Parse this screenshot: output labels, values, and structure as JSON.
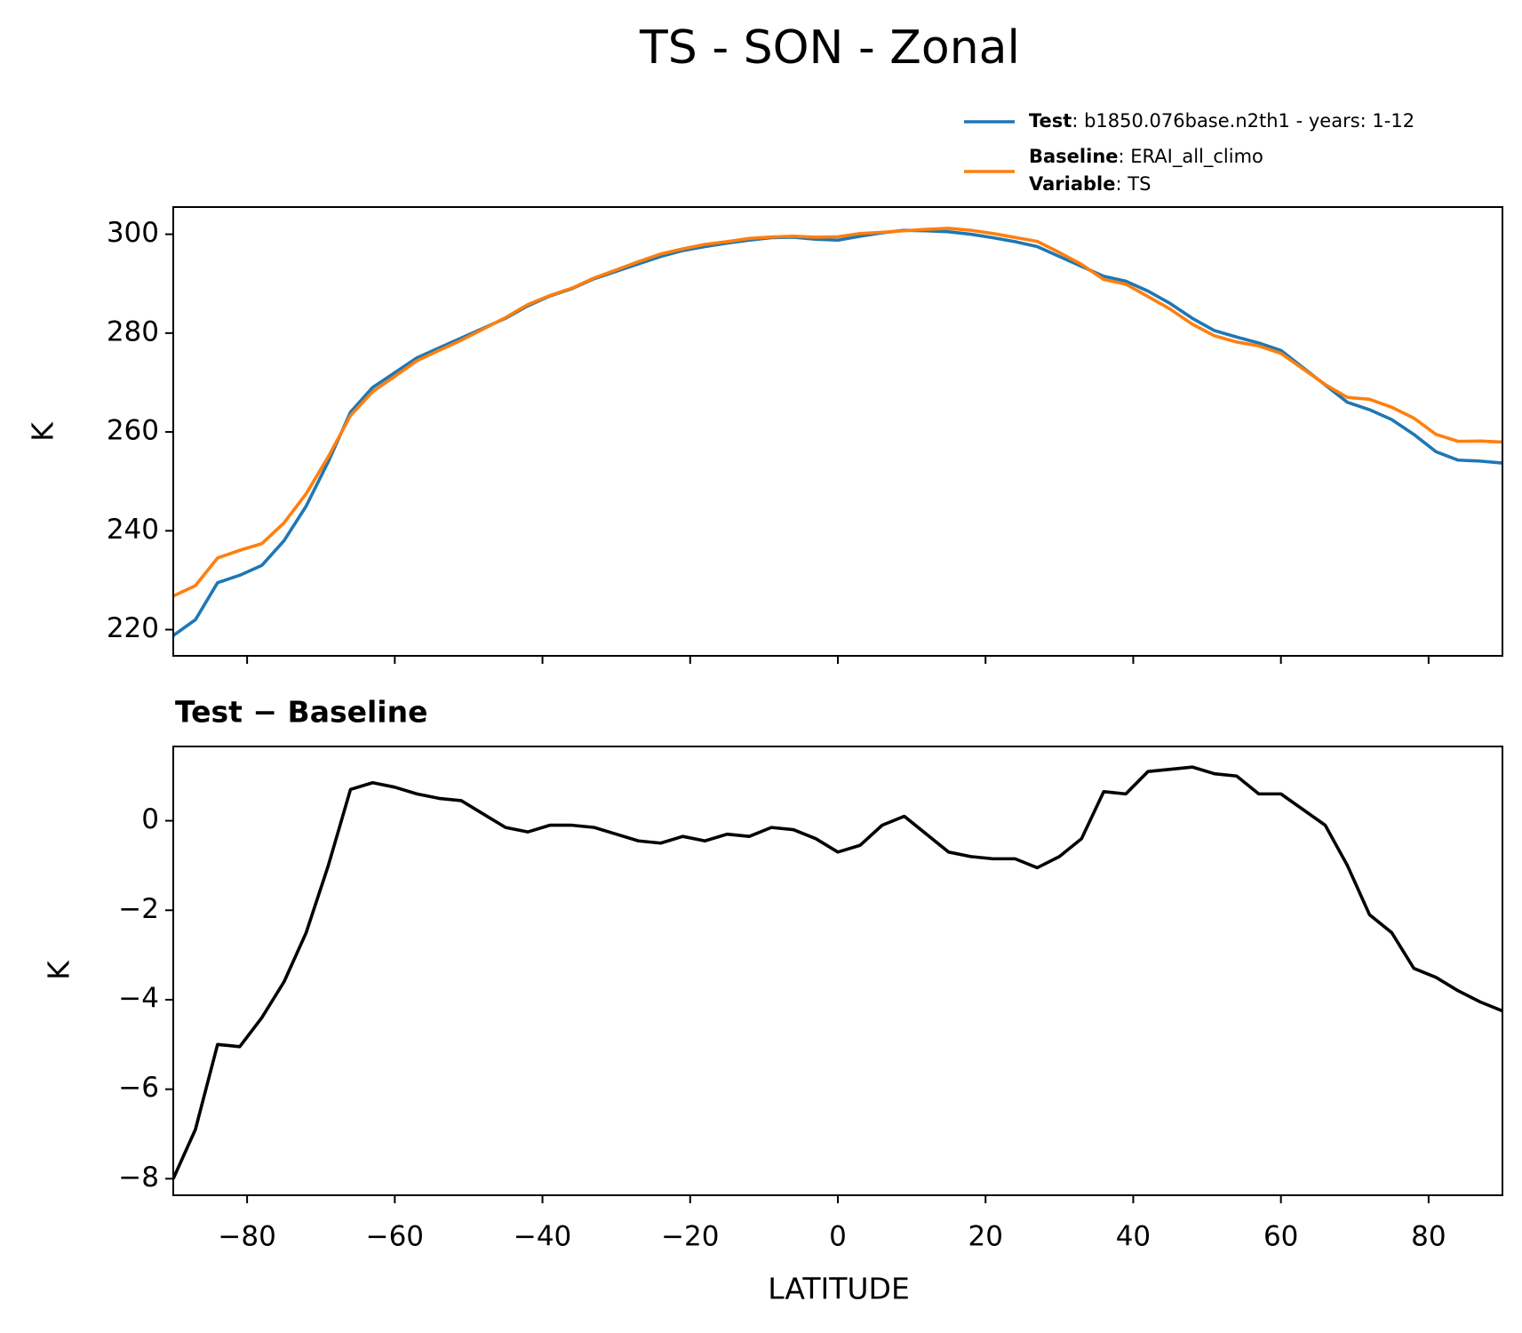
{
  "chart_data": [
    {
      "type": "line",
      "title": "TS - SON - Zonal",
      "ylabel": "K",
      "x": [
        -90,
        -87,
        -84,
        -81,
        -78,
        -75,
        -72,
        -69,
        -66,
        -63,
        -60,
        -57,
        -54,
        -51,
        -48,
        -45,
        -42,
        -39,
        -36,
        -33,
        -30,
        -27,
        -24,
        -21,
        -18,
        -15,
        -12,
        -9,
        -6,
        -3,
        0,
        3,
        6,
        9,
        12,
        15,
        18,
        21,
        24,
        27,
        30,
        33,
        36,
        39,
        42,
        45,
        48,
        51,
        54,
        57,
        60,
        63,
        66,
        69,
        72,
        75,
        78,
        81,
        84,
        87,
        90
      ],
      "series": [
        {
          "name": "Test",
          "description": ": b1850.076base.n2th1 - years: 1-12",
          "color": "#1f77b4",
          "values": [
            218.8,
            222,
            229.5,
            231,
            233,
            238,
            245,
            254,
            264,
            269,
            272,
            275,
            277,
            279,
            281,
            283,
            285.5,
            287.5,
            289,
            291,
            292.5,
            294,
            295.5,
            296.7,
            297.5,
            298.2,
            298.8,
            299.3,
            299.4,
            299,
            298.8,
            299.6,
            300.3,
            300.8,
            300.7,
            300.5,
            300,
            299.3,
            298.5,
            297.5,
            295.5,
            293.5,
            291.5,
            290.5,
            288.5,
            286,
            283,
            280.5,
            279.2,
            278,
            276.5,
            273,
            269.5,
            266,
            264.5,
            262.5,
            259.5,
            256,
            254.3,
            254.1,
            253.7
          ]
        },
        {
          "name": "Baseline",
          "description": ": ERAI_all_climo",
          "color": "#ff7f0e",
          "values": [
            226.8,
            228.9,
            234.5,
            236.05,
            237.4,
            241.6,
            247.5,
            255,
            263.3,
            268.15,
            271.25,
            274.4,
            276.5,
            278.55,
            280.85,
            283.15,
            285.75,
            287.6,
            289.1,
            291.15,
            292.8,
            294.45,
            296,
            297.05,
            297.95,
            298.5,
            299.15,
            299.45,
            299.6,
            299.4,
            299.5,
            300.15,
            300.4,
            300.7,
            301,
            301.2,
            300.8,
            300.15,
            299.35,
            298.55,
            296.3,
            293.9,
            290.85,
            289.9,
            287.4,
            284.85,
            281.8,
            279.45,
            278.2,
            277.4,
            275.9,
            272.75,
            269.6,
            267,
            266.6,
            265,
            262.8,
            259.5,
            258.1,
            258.15,
            257.95
          ]
        }
      ],
      "legend_variable": {
        "name": "Variable",
        "description": ": TS"
      },
      "legend": "upper right",
      "xlim": [
        -90,
        90
      ],
      "xticks": [
        -80,
        -60,
        -40,
        -20,
        0,
        20,
        40,
        60,
        80
      ],
      "ylim": [
        214.7,
        305.5
      ],
      "yticks": [
        220,
        240,
        260,
        280,
        300
      ]
    },
    {
      "type": "line",
      "title": "Test − Baseline",
      "xlabel": "LATITUDE",
      "ylabel": "K",
      "x": [
        -90,
        -87,
        -84,
        -81,
        -78,
        -75,
        -72,
        -69,
        -66,
        -63,
        -60,
        -57,
        -54,
        -51,
        -48,
        -45,
        -42,
        -39,
        -36,
        -33,
        -30,
        -27,
        -24,
        -21,
        -18,
        -15,
        -12,
        -9,
        -6,
        -3,
        0,
        3,
        6,
        9,
        12,
        15,
        18,
        21,
        24,
        27,
        30,
        33,
        36,
        39,
        42,
        45,
        48,
        51,
        54,
        57,
        60,
        63,
        66,
        69,
        72,
        75,
        78,
        81,
        84,
        87,
        90
      ],
      "series": [
        {
          "color": "#000000",
          "values": [
            -8,
            -6.9,
            -5,
            -5.05,
            -4.4,
            -3.6,
            -2.5,
            -1,
            0.7,
            0.85,
            0.75,
            0.6,
            0.5,
            0.45,
            0.15,
            -0.15,
            -0.25,
            -0.1,
            -0.1,
            -0.15,
            -0.3,
            -0.45,
            -0.5,
            -0.35,
            -0.45,
            -0.3,
            -0.35,
            -0.15,
            -0.2,
            -0.4,
            -0.7,
            -0.55,
            -0.1,
            0.1,
            -0.3,
            -0.7,
            -0.8,
            -0.85,
            -0.85,
            -1.05,
            -0.8,
            -0.4,
            0.65,
            0.6,
            1.1,
            1.15,
            1.2,
            1.05,
            1,
            0.6,
            0.6,
            0.25,
            -0.1,
            -1,
            -2.1,
            -2.5,
            -3.3,
            -3.5,
            -3.8,
            -4.05,
            -4.25
          ]
        }
      ],
      "xlim": [
        -90,
        90
      ],
      "xticks": [
        {
          "value": -80,
          "label": "−80"
        },
        {
          "value": -60,
          "label": "−60"
        },
        {
          "value": -40,
          "label": "−40"
        },
        {
          "value": -20,
          "label": "−20"
        },
        0,
        20,
        40,
        60,
        80
      ],
      "ylim": [
        -8.37,
        1.66
      ],
      "yticks": [
        {
          "value": -8,
          "label": "−8"
        },
        {
          "value": -6,
          "label": "−6"
        },
        {
          "value": -4,
          "label": "−4"
        },
        {
          "value": -2,
          "label": "−2"
        },
        0
      ]
    }
  ]
}
